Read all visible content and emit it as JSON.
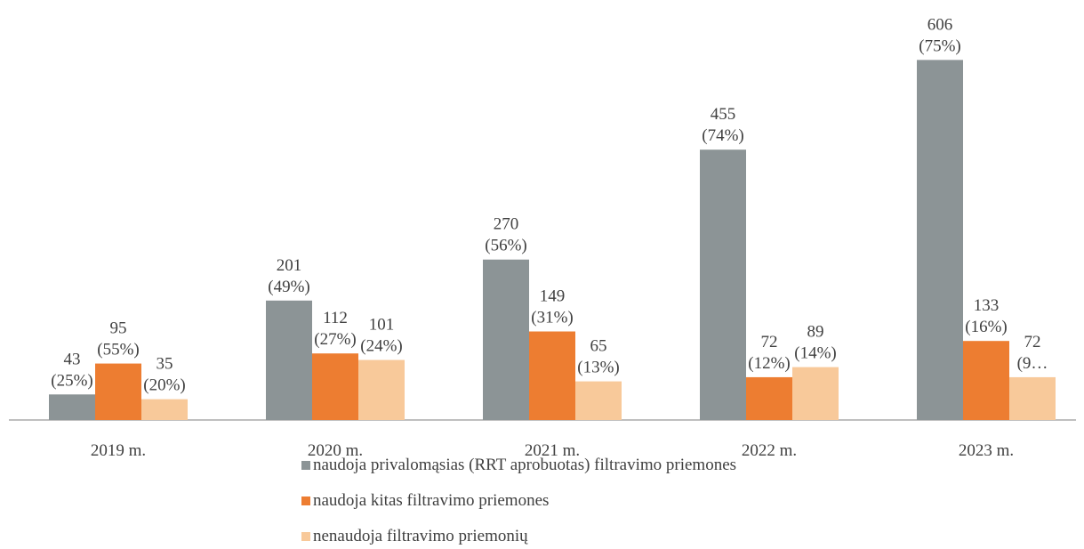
{
  "chart_data": {
    "type": "bar",
    "categories": [
      "2019 m.",
      "2020 m.",
      "2021 m.",
      "2022 m.",
      "2023 m."
    ],
    "ylim": [
      0,
      650
    ],
    "series": [
      {
        "name": "naudoja privalomąsias (RRT aprobuotas) filtravimo priemones",
        "color": "#8c9496",
        "values": [
          43,
          201,
          270,
          455,
          606
        ],
        "value_labels": [
          "43 (25%)",
          "201 (49%)",
          "270 (56%)",
          "455 (74%)",
          "606 (75%)"
        ]
      },
      {
        "name": "naudoja kitas filtravimo priemones",
        "color": "#ed7d31",
        "values": [
          95,
          112,
          149,
          72,
          133
        ],
        "value_labels": [
          "95 (55%)",
          "112 (27%)",
          "149 (31%)",
          "72 (12%)",
          "133 (16%)"
        ]
      },
      {
        "name": "nenaudoja filtravimo priemonių",
        "color": "#f8c99a",
        "values": [
          35,
          101,
          65,
          89,
          72
        ],
        "value_labels": [
          "35 (20%)",
          "101 (24%)",
          "65 (13%)",
          "89 (14%)",
          "72 (9…"
        ]
      }
    ]
  }
}
